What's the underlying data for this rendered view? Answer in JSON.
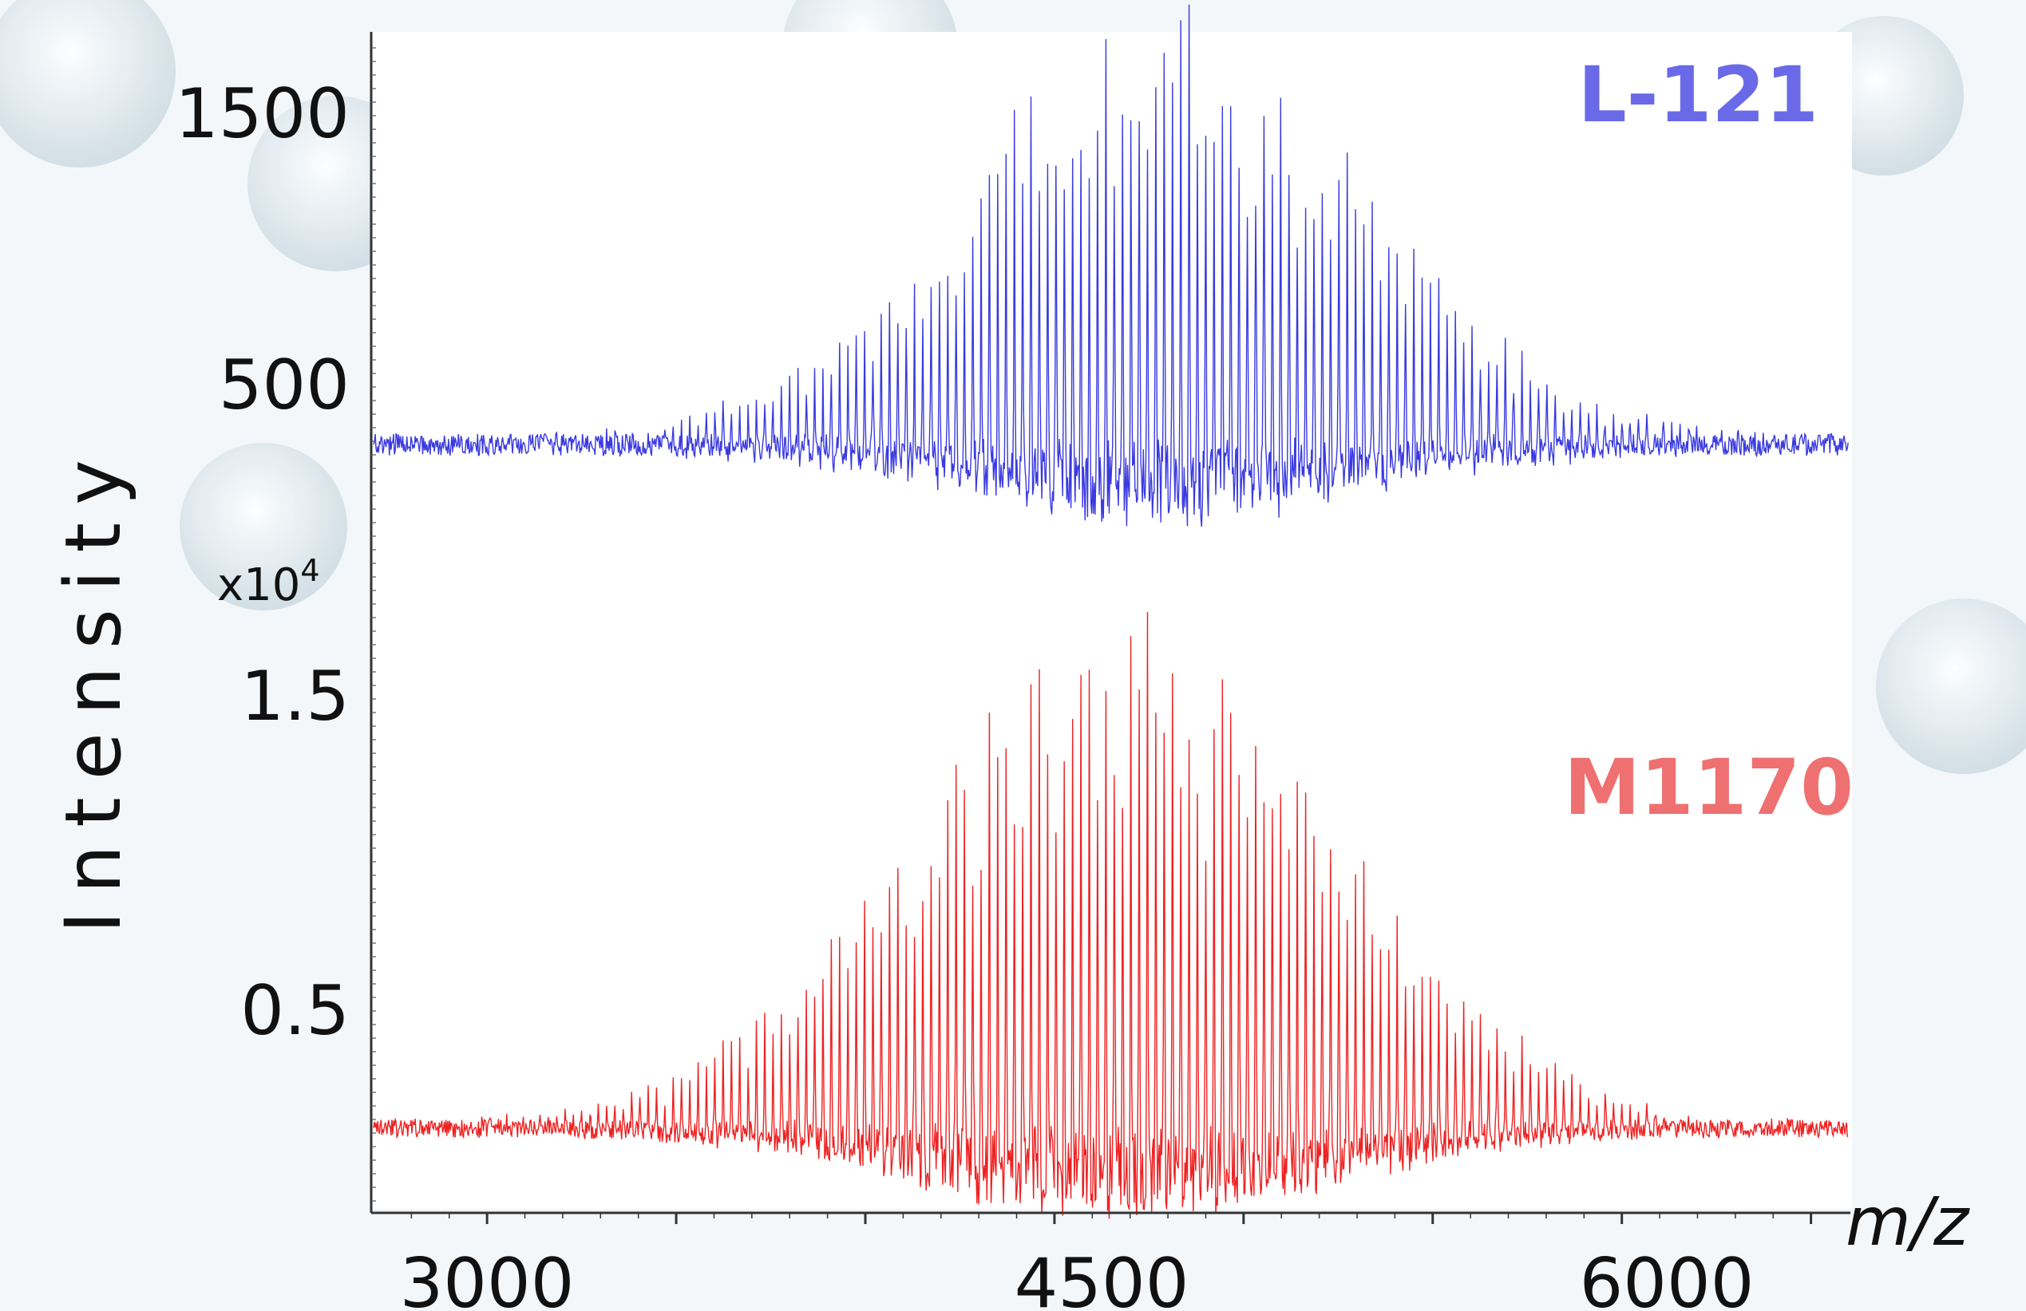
{
  "chart_data": {
    "type": "line",
    "ylabel": "Intensity",
    "xlabel": "m/z",
    "xlim": [
      2700,
      6600
    ],
    "x_ticks": [
      "3000",
      "4500",
      "6000"
    ],
    "x_tick_values": [
      3000,
      4500,
      6000
    ],
    "grid": false,
    "panels": [
      {
        "name": "top",
        "series_name": "L-121",
        "color": "#3a3ae0",
        "label_color": "#6a6ae8",
        "y_ticks": [
          "1500",
          "500"
        ],
        "y_tick_values": [
          1500,
          500
        ],
        "ylim": [
          0,
          1750
        ],
        "baseline": 300,
        "peak_center": 4800,
        "peak_width": 520,
        "peak_height": 1550,
        "peak_spacing": 22,
        "noise": 40
      },
      {
        "name": "bottom",
        "series_name": "M1170",
        "color": "#ee2222",
        "label_color": "#ee7070",
        "multiplier_label": "x10",
        "multiplier_exponent": "4",
        "y_ticks": [
          "1.5",
          "0.5"
        ],
        "y_tick_values": [
          1.5,
          0.5
        ],
        "ylim": [
          0,
          1.9
        ],
        "baseline": 0.15,
        "peak_center": 4680,
        "peak_width": 560,
        "peak_height": 1.65,
        "peak_spacing": 22,
        "noise": 0.03
      }
    ]
  },
  "colors": {
    "axis": "#333333",
    "background": "#f4f7f9"
  }
}
